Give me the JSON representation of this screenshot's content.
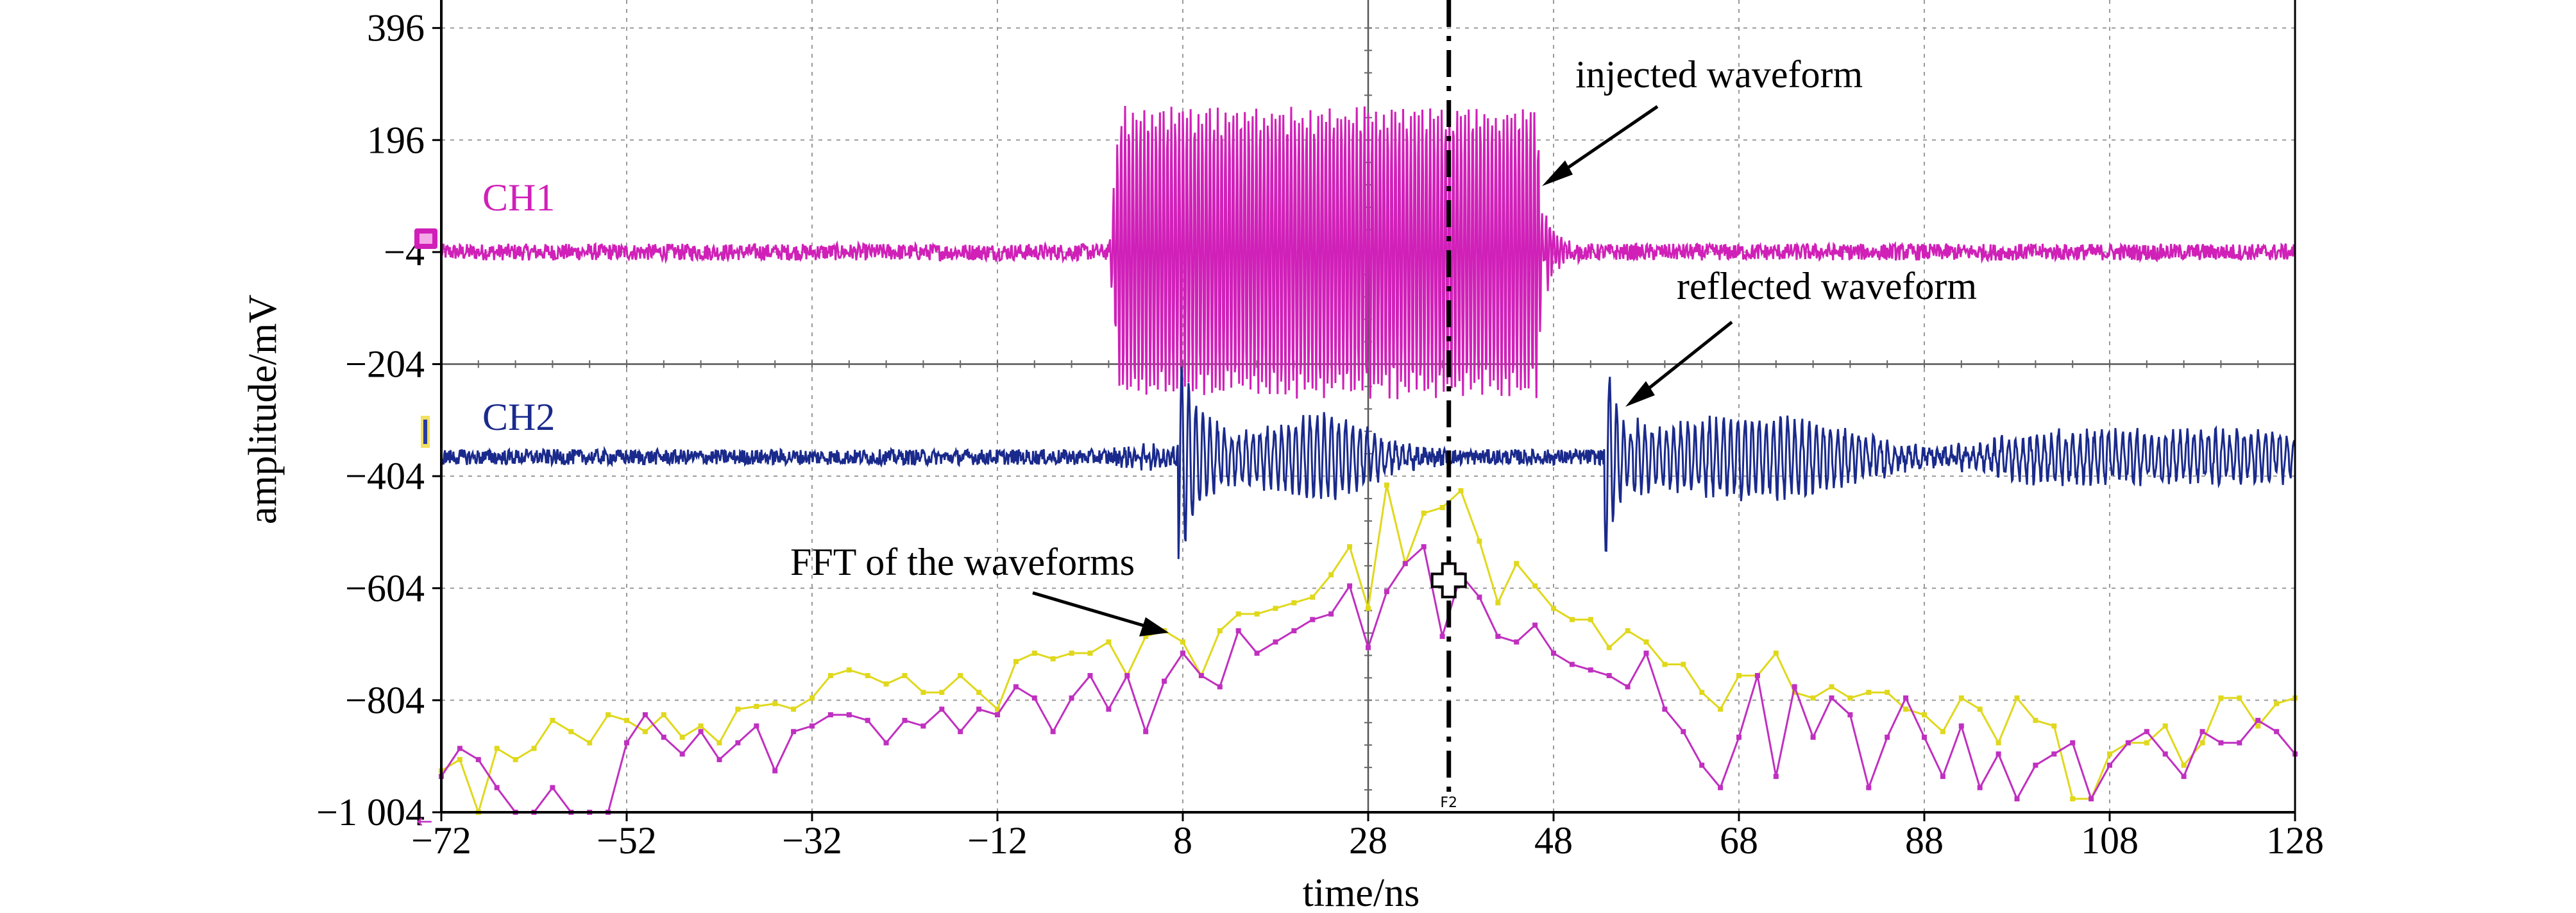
{
  "chart_data": {
    "type": "line",
    "xlabel": "time/ns",
    "ylabel": "amplitude/mV",
    "x_ticks": [
      -72,
      -52,
      -32,
      -12,
      8,
      28,
      48,
      68,
      88,
      108,
      128
    ],
    "y_ticks": [
      396,
      196,
      -4,
      -204,
      -404,
      -604,
      -804,
      -1004
    ],
    "x_tick_labels": [
      "−72",
      "−52",
      "−32",
      "−12",
      "8",
      "28",
      "48",
      "68",
      "88",
      "108",
      "128"
    ],
    "y_tick_labels": [
      "396",
      "196",
      "−4",
      "−204",
      "−404",
      "−604",
      "−804",
      "−1 004"
    ],
    "xlim": [
      -72,
      128
    ],
    "ylim": [
      -1004,
      446
    ],
    "grid": true,
    "channels": [
      {
        "label": "CH1",
        "color": "#d020b8",
        "baseline_mV": -4,
        "burst_start_ns": 0,
        "burst_end_ns": 47,
        "burst_amplitude_mV": 265
      },
      {
        "label": "CH2",
        "color": "#1a2a8c",
        "baseline_mV": -370,
        "echo1_ns": 7.5,
        "echo2_ns": 53.5,
        "echo_amplitude_mV": 190
      }
    ],
    "fft_series": [
      {
        "color": "#e0d81c",
        "x": [
          -72,
          -70,
          -68,
          -66,
          -64,
          -62,
          -60,
          -58,
          -56,
          -54,
          -52,
          -50,
          -48,
          -46,
          -44,
          -42,
          -40,
          -38,
          -36,
          -34,
          -32,
          -30,
          -28,
          -26,
          -24,
          -22,
          -20,
          -18,
          -16,
          -14,
          -12,
          -10,
          -8,
          -6,
          -4,
          -2,
          0,
          2,
          4,
          6,
          8,
          10,
          12,
          14,
          16,
          18,
          20,
          22,
          24,
          26,
          28,
          30,
          32,
          34,
          36,
          38,
          40,
          42,
          44,
          46,
          48,
          50,
          52,
          54,
          56,
          58,
          60,
          62,
          64,
          66,
          68,
          70,
          72,
          74,
          76,
          78,
          80,
          82,
          84,
          86,
          88,
          90,
          92,
          94,
          96,
          98,
          100,
          102,
          104,
          106,
          108,
          110,
          112,
          114,
          116,
          118,
          120,
          122,
          124,
          126,
          128
        ],
        "values": [
          -930,
          -910,
          -1004,
          -890,
          -910,
          -890,
          -840,
          -860,
          -880,
          -830,
          -840,
          -860,
          -830,
          -870,
          -850,
          -880,
          -820,
          -815,
          -810,
          -820,
          -800,
          -760,
          -750,
          -760,
          -775,
          -760,
          -790,
          -790,
          -760,
          -790,
          -820,
          -735,
          -720,
          -730,
          -720,
          -720,
          -700,
          -760,
          -690,
          -680,
          -700,
          -760,
          -680,
          -650,
          -650,
          -640,
          -630,
          -620,
          -580,
          -530,
          -640,
          -420,
          -560,
          -470,
          -460,
          -430,
          -520,
          -630,
          -560,
          -600,
          -640,
          -660,
          -660,
          -710,
          -680,
          -700,
          -740,
          -740,
          -790,
          -820,
          -760,
          -760,
          -720,
          -790,
          -800,
          -780,
          -800,
          -790,
          -790,
          -820,
          -830,
          -860,
          -800,
          -820,
          -880,
          -800,
          -840,
          -850,
          -980,
          -980,
          -900,
          -880,
          -880,
          -850,
          -920,
          -880,
          -800,
          -800,
          -850,
          -810,
          -800
        ]
      },
      {
        "color": "#c030c0",
        "x": [
          -72,
          -70,
          -68,
          -66,
          -64,
          -62,
          -60,
          -58,
          -56,
          -54,
          -52,
          -50,
          -48,
          -46,
          -44,
          -42,
          -40,
          -38,
          -36,
          -34,
          -32,
          -30,
          -28,
          -26,
          -24,
          -22,
          -20,
          -18,
          -16,
          -14,
          -12,
          -10,
          -8,
          -6,
          -4,
          -2,
          0,
          2,
          4,
          6,
          8,
          10,
          12,
          14,
          16,
          18,
          20,
          22,
          24,
          26,
          28,
          30,
          32,
          34,
          36,
          38,
          40,
          42,
          44,
          46,
          48,
          50,
          52,
          54,
          56,
          58,
          60,
          62,
          64,
          66,
          68,
          70,
          72,
          74,
          76,
          78,
          80,
          82,
          84,
          86,
          88,
          90,
          92,
          94,
          96,
          98,
          100,
          102,
          104,
          106,
          108,
          110,
          112,
          114,
          116,
          118,
          120,
          122,
          124,
          126,
          128
        ],
        "values": [
          -940,
          -890,
          -910,
          -960,
          -1004,
          -1004,
          -960,
          -1004,
          -1004,
          -1004,
          -880,
          -830,
          -870,
          -900,
          -860,
          -910,
          -880,
          -850,
          -930,
          -860,
          -850,
          -830,
          -830,
          -840,
          -880,
          -840,
          -850,
          -820,
          -860,
          -820,
          -830,
          -780,
          -800,
          -860,
          -800,
          -760,
          -820,
          -760,
          -860,
          -770,
          -720,
          -760,
          -780,
          -680,
          -720,
          -700,
          -680,
          -660,
          -650,
          -600,
          -710,
          -610,
          -560,
          -530,
          -690,
          -580,
          -620,
          -690,
          -700,
          -670,
          -720,
          -740,
          -750,
          -760,
          -780,
          -720,
          -820,
          -860,
          -920,
          -960,
          -870,
          -760,
          -940,
          -780,
          -870,
          -800,
          -830,
          -960,
          -870,
          -800,
          -870,
          -940,
          -850,
          -960,
          -900,
          -980,
          -920,
          -900,
          -880,
          -980,
          -920,
          -880,
          -860,
          -900,
          -940,
          -860,
          -880,
          -880,
          -840,
          -860,
          -900
        ]
      }
    ],
    "annotations": [
      "injected waveform",
      "reflected waveform",
      "FFT of the waveforms"
    ],
    "marker_label": "F2",
    "cursor_time_ns": 36.7
  }
}
